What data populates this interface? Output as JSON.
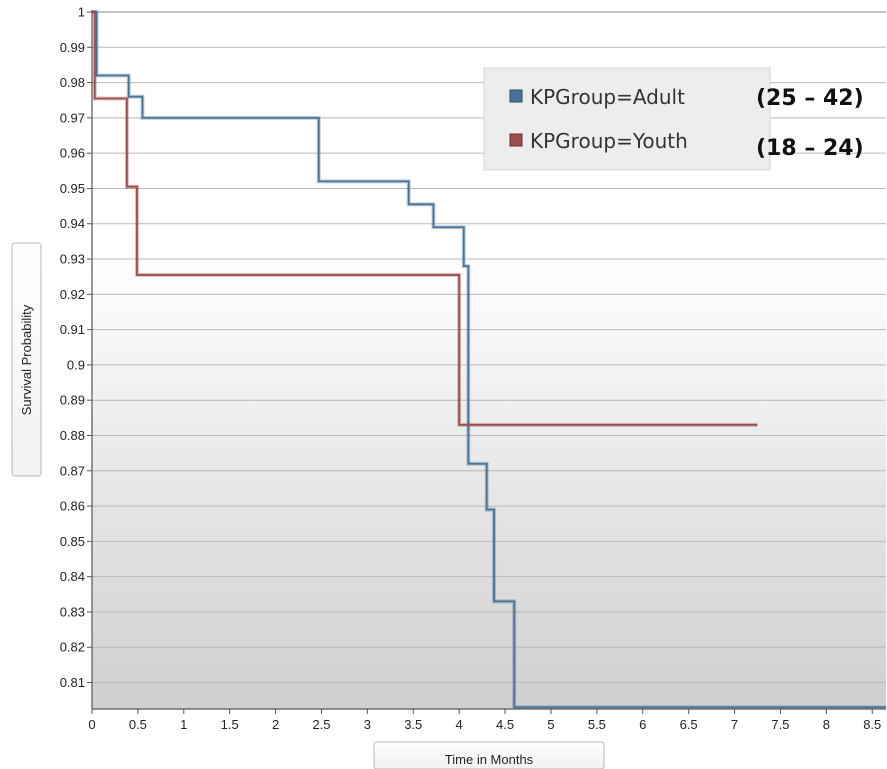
{
  "chart_data": {
    "type": "line",
    "step": true,
    "xlabel": "Time in Months",
    "ylabel": "Survival Probability",
    "xlim": [
      0,
      8.65
    ],
    "ylim": [
      0.8025,
      1.0
    ],
    "xticks": [
      0,
      0.5,
      1,
      1.5,
      2,
      2.5,
      3,
      3.5,
      4,
      4.5,
      5,
      5.5,
      6,
      6.5,
      7,
      7.5,
      8,
      8.5
    ],
    "xtick_labels": [
      "0",
      "0.5",
      "1",
      "1.5",
      "2",
      "2.5",
      "3",
      "3.5",
      "4",
      "4.5",
      "5",
      "5.5",
      "6",
      "6.5",
      "7",
      "7.5",
      "8",
      "8.5"
    ],
    "yticks": [
      0.81,
      0.82,
      0.83,
      0.84,
      0.85,
      0.86,
      0.87,
      0.88,
      0.89,
      0.9,
      0.91,
      0.92,
      0.93,
      0.94,
      0.95,
      0.96,
      0.97,
      0.98,
      0.99,
      1.0
    ],
    "ytick_labels": [
      "0.81",
      "0.82",
      "0.83",
      "0.84",
      "0.85",
      "0.86",
      "0.87",
      "0.88",
      "0.89",
      "0.9",
      "0.91",
      "0.92",
      "0.93",
      "0.94",
      "0.95",
      "0.96",
      "0.97",
      "0.98",
      "0.99",
      "1"
    ],
    "grid": "horizontal",
    "legend_position": "top-right",
    "series": [
      {
        "name": "KPGroup=Adult",
        "color": "#4a7396",
        "x": [
          0,
          0.05,
          0.4,
          0.55,
          2.47,
          3.45,
          3.72,
          4.05,
          4.1,
          4.3,
          4.38,
          4.6,
          8.65
        ],
        "y": [
          1.0,
          0.982,
          0.976,
          0.97,
          0.952,
          0.9455,
          0.939,
          0.928,
          0.872,
          0.859,
          0.833,
          0.803,
          0.803
        ]
      },
      {
        "name": "KPGroup=Youth",
        "color": "#9b4d4d",
        "x": [
          0,
          0.03,
          0.38,
          0.49,
          4.0,
          7.25
        ],
        "y": [
          1.0,
          0.9755,
          0.9505,
          0.9255,
          0.883,
          0.883
        ]
      }
    ],
    "annotations": [
      "(25 – 42)",
      "(18 – 24)"
    ]
  }
}
